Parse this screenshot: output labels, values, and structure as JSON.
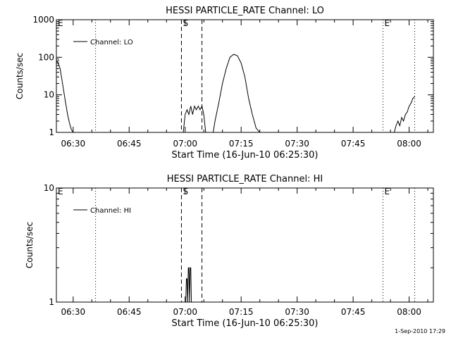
{
  "footer_timestamp": "1-Sep-2010 17:29",
  "chart_data": [
    {
      "type": "line",
      "title": "HESSI PARTICLE_RATE Channel: LO",
      "xlabel": "Start Time (16-Jun-10 06:25:30)",
      "ylabel": "Counts/sec",
      "y_scale": "log",
      "ylim": [
        1,
        1000
      ],
      "y_ticks": [
        1,
        10,
        100,
        1000
      ],
      "y_tick_labels": [
        "1",
        "10",
        "100",
        "1000"
      ],
      "xlim": [
        "06:25:30",
        "08:06:30"
      ],
      "x_ticks": [
        "06:30",
        "06:45",
        "07:00",
        "07:15",
        "07:30",
        "07:45",
        "08:00"
      ],
      "legend": "top-left",
      "series": [
        {
          "name": "Channel: LO",
          "x": [
            "06:25:30",
            "06:26:00",
            "06:26:30",
            "06:27:00",
            "06:27:30",
            "06:28:00",
            "06:28:30",
            "06:29:00",
            "06:29:30",
            "06:30:00",
            "06:59:30",
            "07:00:00",
            "07:00:30",
            "07:01:00",
            "07:01:30",
            "07:02:00",
            "07:02:30",
            "07:03:00",
            "07:03:30",
            "07:04:00",
            "07:04:30",
            "07:05:00",
            "07:05:30",
            "07:07:30",
            "07:08:00",
            "07:09:00",
            "07:10:00",
            "07:11:00",
            "07:12:00",
            "07:13:00",
            "07:14:00",
            "07:15:00",
            "07:16:00",
            "07:17:00",
            "07:18:00",
            "07:19:00",
            "07:20:00",
            "07:56:00",
            "07:56:30",
            "07:57:00",
            "07:57:30",
            "07:58:00",
            "07:58:30",
            "07:59:00",
            "07:59:30",
            "08:00:00",
            "08:00:30",
            "08:01:00",
            "08:01:30"
          ],
          "y": [
            80,
            70,
            50,
            25,
            12,
            6,
            3,
            1.8,
            1.2,
            1,
            1,
            3,
            4,
            3,
            5,
            3,
            5,
            4,
            5,
            4,
            5,
            3,
            1,
            1,
            2,
            6,
            20,
            50,
            100,
            120,
            110,
            70,
            30,
            8,
            3,
            1.3,
            1,
            1,
            1.5,
            2,
            1.5,
            2.5,
            2,
            3,
            3.5,
            5,
            6,
            8,
            9
          ]
        }
      ],
      "annotations": [
        {
          "text": "E",
          "x": "06:25:30"
        },
        {
          "text": "S",
          "x": "06:59:00"
        },
        {
          "text": "E",
          "x": "07:53:00"
        }
      ],
      "vertical_lines": [
        {
          "x": "06:36:00",
          "style": "dotted"
        },
        {
          "x": "06:59:00",
          "style": "dashed"
        },
        {
          "x": "07:04:30",
          "style": "dashed"
        },
        {
          "x": "07:53:00",
          "style": "dotted"
        },
        {
          "x": "08:01:30",
          "style": "dotted"
        }
      ]
    },
    {
      "type": "line",
      "title": "HESSI PARTICLE_RATE Channel: HI",
      "xlabel": "Start Time (16-Jun-10 06:25:30)",
      "ylabel": "Counts/sec",
      "y_scale": "log",
      "ylim": [
        1,
        10
      ],
      "y_ticks": [
        1,
        10
      ],
      "y_tick_labels": [
        "1",
        "10"
      ],
      "xlim": [
        "06:25:30",
        "08:06:30"
      ],
      "x_ticks": [
        "06:30",
        "06:45",
        "07:00",
        "07:15",
        "07:30",
        "07:45",
        "08:00"
      ],
      "legend": "top-left",
      "series": [
        {
          "name": "Channel: HI",
          "x": [
            "07:00:00",
            "07:00:10",
            "07:00:20",
            "07:00:30",
            "07:00:40",
            "07:00:50",
            "07:01:00",
            "07:01:10",
            "07:01:20",
            "07:01:30",
            "07:01:40",
            "07:01:50",
            "07:02:00",
            "07:02:10"
          ],
          "y": [
            1,
            1,
            1.6,
            1.6,
            1,
            2,
            2,
            1,
            2,
            2,
            1,
            1,
            1,
            1
          ]
        }
      ],
      "annotations": [
        {
          "text": "E",
          "x": "06:25:30"
        },
        {
          "text": "S",
          "x": "06:59:00"
        },
        {
          "text": "E",
          "x": "07:53:00"
        }
      ],
      "vertical_lines": [
        {
          "x": "06:36:00",
          "style": "dotted"
        },
        {
          "x": "06:59:00",
          "style": "dashed"
        },
        {
          "x": "07:04:30",
          "style": "dashed"
        },
        {
          "x": "07:53:00",
          "style": "dotted"
        },
        {
          "x": "08:01:30",
          "style": "dotted"
        }
      ]
    }
  ]
}
